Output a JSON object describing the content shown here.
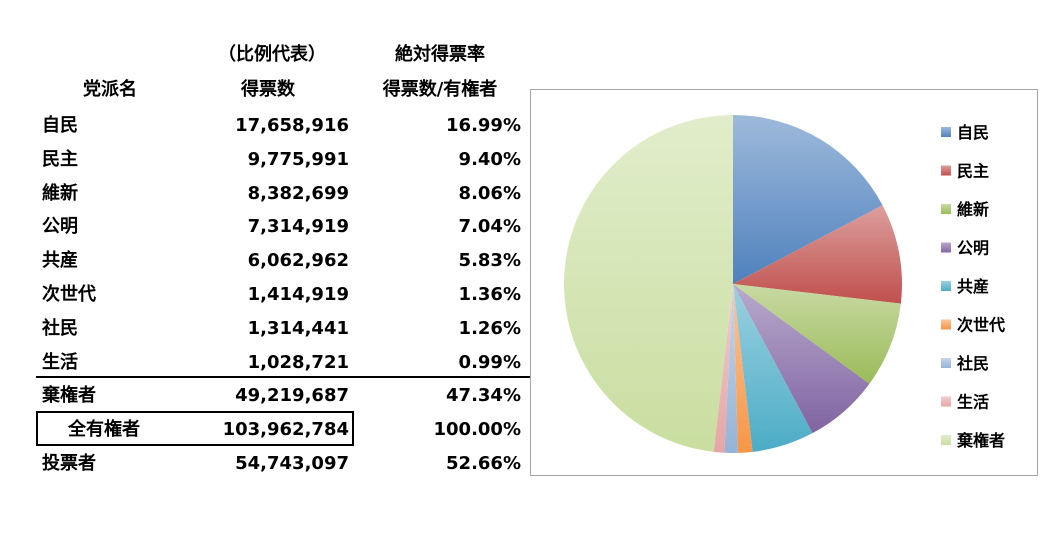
{
  "table": {
    "headers": {
      "party_col": "党派名",
      "votes_col_line1": "（比例代表）",
      "votes_col_line2": "得票数",
      "rate_col_line1": "絶対得票率",
      "rate_col_line2": "得票数/有権者"
    },
    "rows": [
      {
        "party": "自民",
        "votes": "17,658,916",
        "rate": "16.99%"
      },
      {
        "party": "民主",
        "votes": "9,775,991",
        "rate": "9.40%"
      },
      {
        "party": "維新",
        "votes": "8,382,699",
        "rate": "8.06%"
      },
      {
        "party": "公明",
        "votes": "7,314,919",
        "rate": "7.04%"
      },
      {
        "party": "共産",
        "votes": "6,062,962",
        "rate": "5.83%"
      },
      {
        "party": "次世代",
        "votes": "1,414,919",
        "rate": "1.36%"
      },
      {
        "party": "社民",
        "votes": "1,314,441",
        "rate": "1.26%"
      },
      {
        "party": "生活",
        "votes": "1,028,721",
        "rate": "0.99%"
      },
      {
        "party": "棄権者",
        "votes": "49,219,687",
        "rate": "47.34%"
      },
      {
        "party": "全有権者",
        "votes": "103,962,784",
        "rate": "100.00%"
      },
      {
        "party": "投票者",
        "votes": "54,743,097",
        "rate": "52.66%"
      }
    ]
  },
  "chart_data": {
    "type": "pie",
    "start": "12 o'clock, clockwise",
    "legend_position": "right",
    "categories": [
      "自民",
      "民主",
      "維新",
      "公明",
      "共産",
      "次世代",
      "社民",
      "生活",
      "棄権者"
    ],
    "values": [
      17658916,
      9775991,
      8382699,
      7314919,
      6062962,
      1414919,
      1314441,
      1028721,
      49219687
    ],
    "colors": [
      "#4f81bd",
      "#c0504d",
      "#9bbb59",
      "#8064a2",
      "#4bacc6",
      "#f79646",
      "#95b3d7",
      "#e6a5a5",
      "#c9dea0"
    ]
  }
}
